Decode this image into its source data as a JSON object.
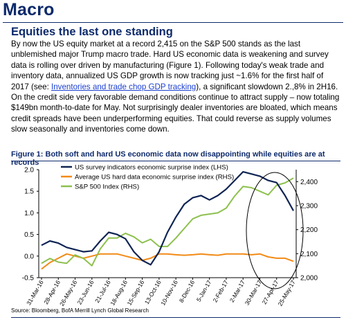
{
  "section_title": "Macro",
  "headline": "Equities the last one standing",
  "body": {
    "p1": "By now the US equity market at a record 2,415 on the S&P 500 stands as the last unblemished major Trump macro trade.  Hard US economic data is weakening and survey data is rolling over driven by manufacturing (Figure 1).  Following today's weak trade and inventory data, annualized US GDP growth is now tracking just ~1.6% for the first half of 2017 (see: ",
    "link": "Inventories and trade chop GDP tracking",
    "p2": "), a significant slowdown 2.,8% in 2H16.  On the credit side very favorable demand conditions continue to attract supply – now totaling $149bn month-to-date for May. Not surprisingly dealer inventories are bloated, which means credit spreads have been underperforming equities.  That could reverse as supply volumes slow seasonally and inventories come down."
  },
  "figure": {
    "caption": "Figure 1:  Both soft and hard US economic data now disappointing while equities are at records",
    "source": "Source: Bloomberg, BofA Merrill Lynch Global Research"
  },
  "chart_data": {
    "type": "line",
    "title": "",
    "x_tick_labels": [
      "31-Mar-16",
      "28-Apr-16",
      "26-May-16",
      "23-Jun-16",
      "21-Jul-16",
      "18-Aug-16",
      "15-Sep-16",
      "13-Oct-16",
      "10-Nov-16",
      "8-Dec-16",
      "5-Jan-17",
      "2-Feb-17",
      "2-Mar-17",
      "30-Mar-17",
      "27-Apr-17",
      "25-May-17"
    ],
    "left_axis": {
      "ticks": [
        "2.0",
        "1.5",
        "1.0",
        "0.5",
        "0.0",
        "-0.5"
      ],
      "ylim": [
        -0.5,
        2.0
      ]
    },
    "right_axis": {
      "ticks": [
        "2,400",
        "2,300",
        "2,200",
        "2,100",
        "2,000"
      ],
      "ylim": [
        2000,
        2450
      ]
    },
    "series": [
      {
        "name": "US survey indicators economic surprise index (LHS)",
        "axis": "left",
        "color": "#0f2454",
        "x": [
          "31-Mar-16",
          "14-Apr-16",
          "28-Apr-16",
          "12-May-16",
          "26-May-16",
          "9-Jun-16",
          "23-Jun-16",
          "7-Jul-16",
          "21-Jul-16",
          "4-Aug-16",
          "18-Aug-16",
          "1-Sep-16",
          "15-Sep-16",
          "29-Sep-16",
          "13-Oct-16",
          "27-Oct-16",
          "10-Nov-16",
          "24-Nov-16",
          "8-Dec-16",
          "22-Dec-16",
          "5-Jan-17",
          "19-Jan-17",
          "2-Feb-17",
          "16-Feb-17",
          "2-Mar-17",
          "16-Mar-17",
          "30-Mar-17",
          "13-Apr-17",
          "27-Apr-17",
          "11-May-17",
          "25-May-17"
        ],
        "values": [
          0.25,
          0.35,
          0.3,
          0.2,
          0.15,
          0.1,
          0.12,
          0.35,
          0.55,
          0.5,
          0.4,
          0.1,
          -0.1,
          -0.2,
          0.1,
          0.55,
          0.9,
          1.2,
          1.35,
          1.4,
          1.3,
          1.4,
          1.55,
          1.75,
          1.95,
          1.9,
          1.85,
          1.75,
          1.7,
          1.4,
          1.05
        ]
      },
      {
        "name": "Average US hard data economic surprise index (RHS)",
        "axis": "left",
        "color": "#f28a16",
        "x": [
          "31-Mar-16",
          "14-Apr-16",
          "28-Apr-16",
          "12-May-16",
          "26-May-16",
          "9-Jun-16",
          "23-Jun-16",
          "7-Jul-16",
          "21-Jul-16",
          "4-Aug-16",
          "18-Aug-16",
          "1-Sep-16",
          "15-Sep-16",
          "29-Sep-16",
          "13-Oct-16",
          "27-Oct-16",
          "10-Nov-16",
          "24-Nov-16",
          "8-Dec-16",
          "22-Dec-16",
          "5-Jan-17",
          "19-Jan-17",
          "2-Feb-17",
          "16-Feb-17",
          "2-Mar-17",
          "16-Mar-17",
          "30-Mar-17",
          "13-Apr-17",
          "27-Apr-17",
          "11-May-17",
          "25-May-17"
        ],
        "values": [
          -0.3,
          -0.15,
          -0.05,
          0.05,
          0.0,
          -0.05,
          0.0,
          0.05,
          0.05,
          0.05,
          0.0,
          -0.05,
          -0.1,
          -0.05,
          0.05,
          0.05,
          0.03,
          0.02,
          0.03,
          0.05,
          0.03,
          0.02,
          0.05,
          0.05,
          0.05,
          0.03,
          0.05,
          -0.02,
          -0.05,
          -0.05,
          -0.12
        ]
      },
      {
        "name": "S&P 500 Index (RHS)",
        "axis": "right",
        "color": "#8dc04e",
        "x": [
          "31-Mar-16",
          "14-Apr-16",
          "28-Apr-16",
          "12-May-16",
          "26-May-16",
          "9-Jun-16",
          "23-Jun-16",
          "7-Jul-16",
          "21-Jul-16",
          "4-Aug-16",
          "18-Aug-16",
          "1-Sep-16",
          "15-Sep-16",
          "29-Sep-16",
          "13-Oct-16",
          "27-Oct-16",
          "10-Nov-16",
          "24-Nov-16",
          "8-Dec-16",
          "22-Dec-16",
          "5-Jan-17",
          "19-Jan-17",
          "2-Feb-17",
          "16-Feb-17",
          "2-Mar-17",
          "16-Mar-17",
          "30-Mar-17",
          "13-Apr-17",
          "27-Apr-17",
          "11-May-17",
          "25-May-17"
        ],
        "values": [
          2060,
          2080,
          2065,
          2060,
          2095,
          2080,
          2050,
          2120,
          2165,
          2165,
          2185,
          2170,
          2145,
          2160,
          2130,
          2130,
          2165,
          2205,
          2245,
          2260,
          2265,
          2270,
          2290,
          2340,
          2380,
          2375,
          2360,
          2345,
          2385,
          2395,
          2415
        ]
      }
    ],
    "grid": false,
    "legend_placement": "top-center",
    "annotations": [
      "ellipse around Mar-17 to May-17 highlighting divergence"
    ]
  }
}
